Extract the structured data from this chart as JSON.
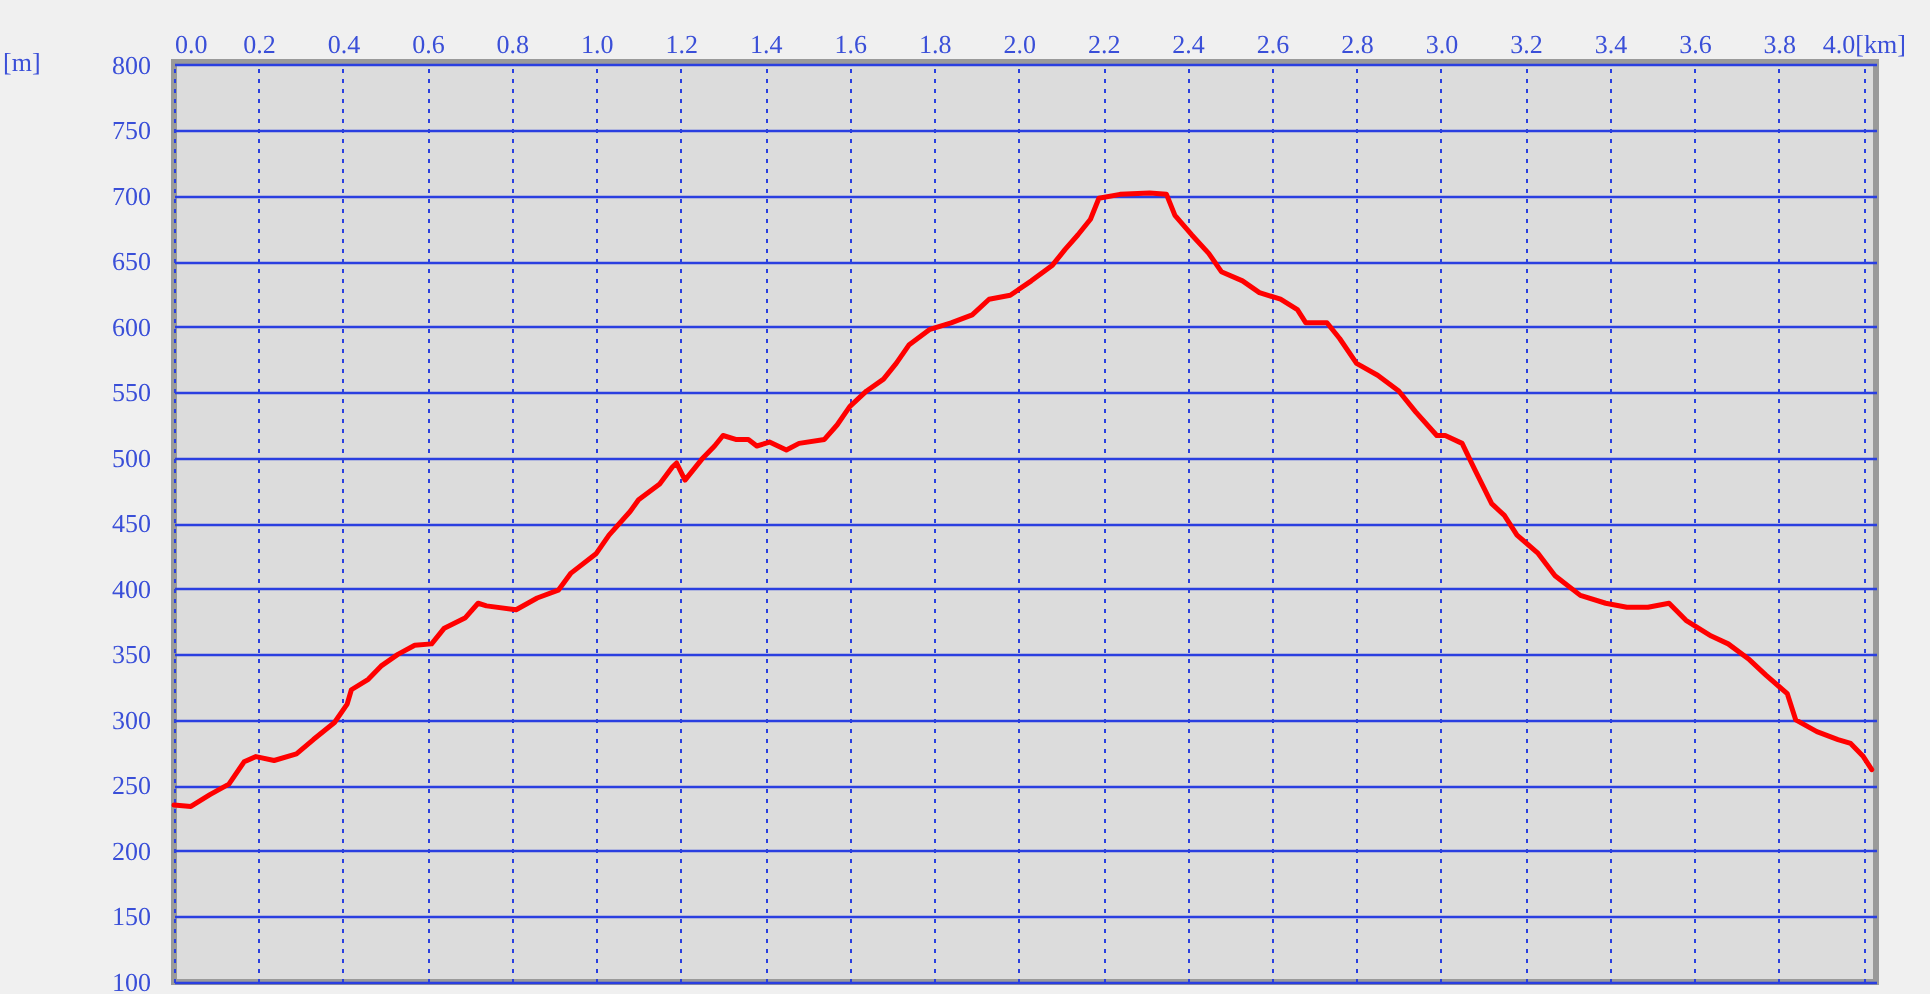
{
  "chart_data": {
    "type": "line",
    "ylabel": "[m]",
    "x": [
      0,
      0.04,
      0.085,
      0.13,
      0.166,
      0.194,
      0.237,
      0.29,
      0.33,
      0.38,
      0.41,
      0.42,
      0.46,
      0.49,
      0.53,
      0.57,
      0.61,
      0.64,
      0.69,
      0.72,
      0.74,
      0.81,
      0.86,
      0.91,
      0.94,
      1.0,
      1.03,
      1.08,
      1.1,
      1.15,
      1.18,
      1.19,
      1.21,
      1.25,
      1.28,
      1.3,
      1.33,
      1.36,
      1.38,
      1.41,
      1.45,
      1.48,
      1.54,
      1.57,
      1.6,
      1.64,
      1.68,
      1.71,
      1.74,
      1.79,
      1.84,
      1.89,
      1.93,
      1.98,
      2.03,
      2.08,
      2.11,
      2.14,
      2.17,
      2.19,
      2.24,
      2.31,
      2.35,
      2.37,
      2.41,
      2.45,
      2.48,
      2.53,
      2.57,
      2.62,
      2.66,
      2.68,
      2.73,
      2.76,
      2.8,
      2.85,
      2.9,
      2.94,
      2.99,
      3.01,
      3.05,
      3.08,
      3.12,
      3.15,
      3.18,
      3.23,
      3.27,
      3.33,
      3.39,
      3.44,
      3.49,
      3.54,
      3.58,
      3.64,
      3.68,
      3.73,
      3.77,
      3.82,
      3.84,
      3.89,
      3.94,
      3.97,
      4.0,
      4.02
    ],
    "series": [
      {
        "color": "#ff0000",
        "values": [
          235,
          234,
          243,
          251,
          268,
          272,
          269,
          274,
          285,
          298,
          312,
          323,
          331,
          341,
          350,
          357,
          358,
          370,
          378,
          389,
          387,
          384,
          393,
          399,
          412,
          427,
          441,
          459,
          468,
          480,
          493,
          496,
          483,
          499,
          509,
          517,
          514,
          514,
          509,
          512,
          506,
          511,
          514,
          525,
          539,
          551,
          560,
          572,
          586,
          598,
          603,
          609,
          621,
          624,
          635,
          647,
          659,
          670,
          682,
          698,
          701,
          702,
          701,
          685,
          670,
          656,
          642,
          635,
          626,
          621,
          613,
          603,
          603,
          591,
          572,
          563,
          551,
          535,
          517,
          517,
          511,
          491,
          465,
          456,
          441,
          427,
          410,
          395,
          389,
          386,
          386,
          389,
          376,
          364,
          358,
          346,
          334,
          320,
          300,
          291,
          285,
          282,
          272,
          262
        ]
      }
    ],
    "xlim": [
      0,
      4.03
    ],
    "xticks": [
      {
        "value": 0,
        "label": "0.0"
      },
      0.2,
      0.4,
      0.6,
      0.8,
      {
        "value": 1,
        "label": "1.0"
      },
      1.2,
      1.4,
      1.6,
      1.8,
      {
        "value": 2,
        "label": "2.0"
      },
      2.2,
      2.4,
      2.6,
      2.8,
      {
        "value": 3,
        "label": "3.0"
      },
      3.2,
      3.4,
      3.6,
      3.8,
      {
        "value": 4,
        "label": "4.0[km]"
      }
    ],
    "ylim": [
      100,
      802
    ],
    "yticks": [
      100,
      150,
      200,
      250,
      300,
      350,
      400,
      450,
      500,
      550,
      600,
      650,
      700,
      750,
      800
    ],
    "grid": true,
    "marker": "none",
    "line_style": "solid"
  }
}
